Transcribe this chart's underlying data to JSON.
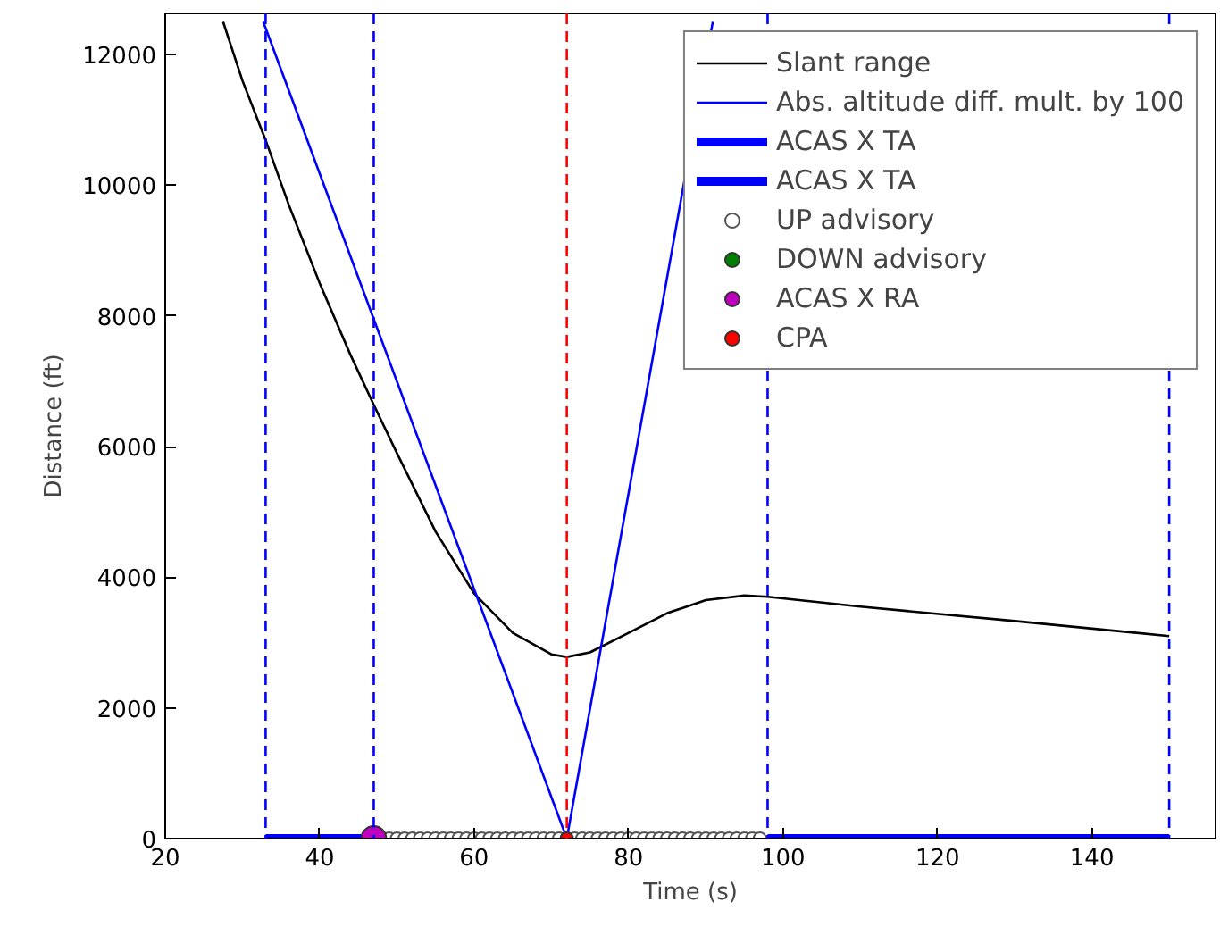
{
  "chart_data": {
    "type": "line",
    "xlabel": "Time (s)",
    "ylabel": "Distance (ft)",
    "xlim": [
      20,
      156
    ],
    "ylim": [
      0,
      12630
    ],
    "xticks": [
      20,
      40,
      60,
      80,
      100,
      120,
      140
    ],
    "yticks": [
      0,
      2000,
      4000,
      6000,
      8000,
      10000,
      12000
    ],
    "grid": false,
    "legend": "top right",
    "ref_lines": [
      {
        "axis": "x",
        "value": 33,
        "color": "#0000ff",
        "line_style": "dashed"
      },
      {
        "axis": "x",
        "value": 47,
        "color": "#0000ff",
        "line_style": "dashed"
      },
      {
        "axis": "x",
        "value": 98,
        "color": "#0000ff",
        "line_style": "dashed"
      },
      {
        "axis": "x",
        "value": 150,
        "color": "#0000ff",
        "line_style": "dashed"
      },
      {
        "axis": "x",
        "value": 72,
        "color": "#ff0000",
        "line_style": "dashed"
      }
    ],
    "series": [
      {
        "name": "Slant range",
        "color": "#000000",
        "x": [
          27.5,
          30,
          33,
          36,
          40,
          44,
          47,
          50,
          55,
          60,
          65,
          70,
          72,
          75,
          80,
          85,
          90,
          95,
          98,
          110,
          130,
          150
        ],
        "values": [
          12500,
          11600,
          10690,
          9700,
          8500,
          7400,
          6640,
          5900,
          4700,
          3750,
          3150,
          2820,
          2780,
          2850,
          3150,
          3450,
          3650,
          3720,
          3700,
          3550,
          3330,
          3100
        ]
      },
      {
        "name": "Abs. altitude diff. mult. by 100",
        "color": "#0000ff",
        "x": [
          32.7,
          72,
          90.9
        ],
        "values": [
          12500,
          0,
          12500
        ]
      },
      {
        "name": "ACAS X TA",
        "color": "#0000ff",
        "x": [
          33,
          47
        ],
        "values": [
          0,
          0
        ]
      },
      {
        "name": "ACAS X TA",
        "color": "#0000ff",
        "x": [
          98,
          150
        ],
        "values": [
          0,
          0
        ]
      },
      {
        "name": "UP advisory",
        "type": "scatter",
        "marker": "circle",
        "color": "#ffffff",
        "x": [
          49,
          50,
          51,
          52,
          53,
          54,
          55,
          56,
          57,
          58,
          59,
          60,
          61,
          62,
          63,
          64,
          65,
          66,
          67,
          68,
          69,
          70,
          71,
          72,
          73,
          74,
          75,
          76,
          77,
          78,
          79,
          80,
          81,
          82,
          83,
          84,
          85,
          86,
          87,
          88,
          89,
          90,
          91,
          92,
          93,
          94,
          95,
          96,
          97
        ],
        "values": [
          0,
          0,
          0,
          0,
          0,
          0,
          0,
          0,
          0,
          0,
          0,
          0,
          0,
          0,
          0,
          0,
          0,
          0,
          0,
          0,
          0,
          0,
          0,
          0,
          0,
          0,
          0,
          0,
          0,
          0,
          0,
          0,
          0,
          0,
          0,
          0,
          0,
          0,
          0,
          0,
          0,
          0,
          0,
          0,
          0,
          0,
          0,
          0,
          0
        ]
      },
      {
        "name": "DOWN advisory",
        "type": "scatter",
        "marker": "circle",
        "color": "#008000"
      },
      {
        "name": "ACAS X RA",
        "type": "scatter",
        "marker": "circle",
        "color": "#bf00bf",
        "x": [
          47
        ],
        "values": [
          0
        ]
      },
      {
        "name": "CPA",
        "type": "scatter",
        "marker": "circle",
        "color": "#ff0000",
        "x": [
          72
        ],
        "values": [
          0
        ]
      }
    ]
  }
}
